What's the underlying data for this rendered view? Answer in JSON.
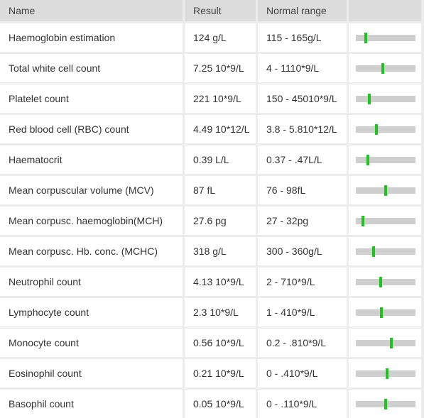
{
  "headers": {
    "name": "Name",
    "result": "Result",
    "range": "Normal range",
    "indicator": ""
  },
  "colors": {
    "marker": "#1ec51e",
    "track": "#cfcfcf",
    "header_bg": "#dcdcdc"
  },
  "rows": [
    {
      "name": "Haemoglobin estimation",
      "result": "124 g/L",
      "range": "115 - 165g/L",
      "level": 0.17
    },
    {
      "name": "Total white cell count",
      "result": "7.25 10*9/L",
      "range": "4 - 1110*9/L",
      "level": 0.45
    },
    {
      "name": "Platelet count",
      "result": "221 10*9/L",
      "range": "150 - 45010*9/L",
      "level": 0.23
    },
    {
      "name": "Red blood cell (RBC) count",
      "result": "4.49 10*12/L",
      "range": "3.8 - 5.810*12/L",
      "level": 0.35
    },
    {
      "name": "Haematocrit",
      "result": "0.39 L/L",
      "range": "0.37 - .47L/L",
      "level": 0.2
    },
    {
      "name": "Mean corpuscular volume (MCV)",
      "result": "87 fL",
      "range": "76 - 98fL",
      "level": 0.5
    },
    {
      "name": "Mean corpusc. haemoglobin(MCH)",
      "result": "27.6 pg",
      "range": "27 - 32pg",
      "level": 0.12
    },
    {
      "name": "Mean corpusc. Hb. conc. (MCHC)",
      "result": "318 g/L",
      "range": "300 - 360g/L",
      "level": 0.3
    },
    {
      "name": "Neutrophil count",
      "result": "4.13 10*9/L",
      "range": "2 - 710*9/L",
      "level": 0.42
    },
    {
      "name": "Lymphocyte count",
      "result": "2.3 10*9/L",
      "range": "1 - 410*9/L",
      "level": 0.43
    },
    {
      "name": "Monocyte count",
      "result": "0.56 10*9/L",
      "range": "0.2 - .810*9/L",
      "level": 0.6
    },
    {
      "name": "Eosinophil count",
      "result": "0.21 10*9/L",
      "range": "0 - .410*9/L",
      "level": 0.52
    },
    {
      "name": "Basophil count",
      "result": "0.05 10*9/L",
      "range": "0 - .110*9/L",
      "level": 0.5
    }
  ]
}
